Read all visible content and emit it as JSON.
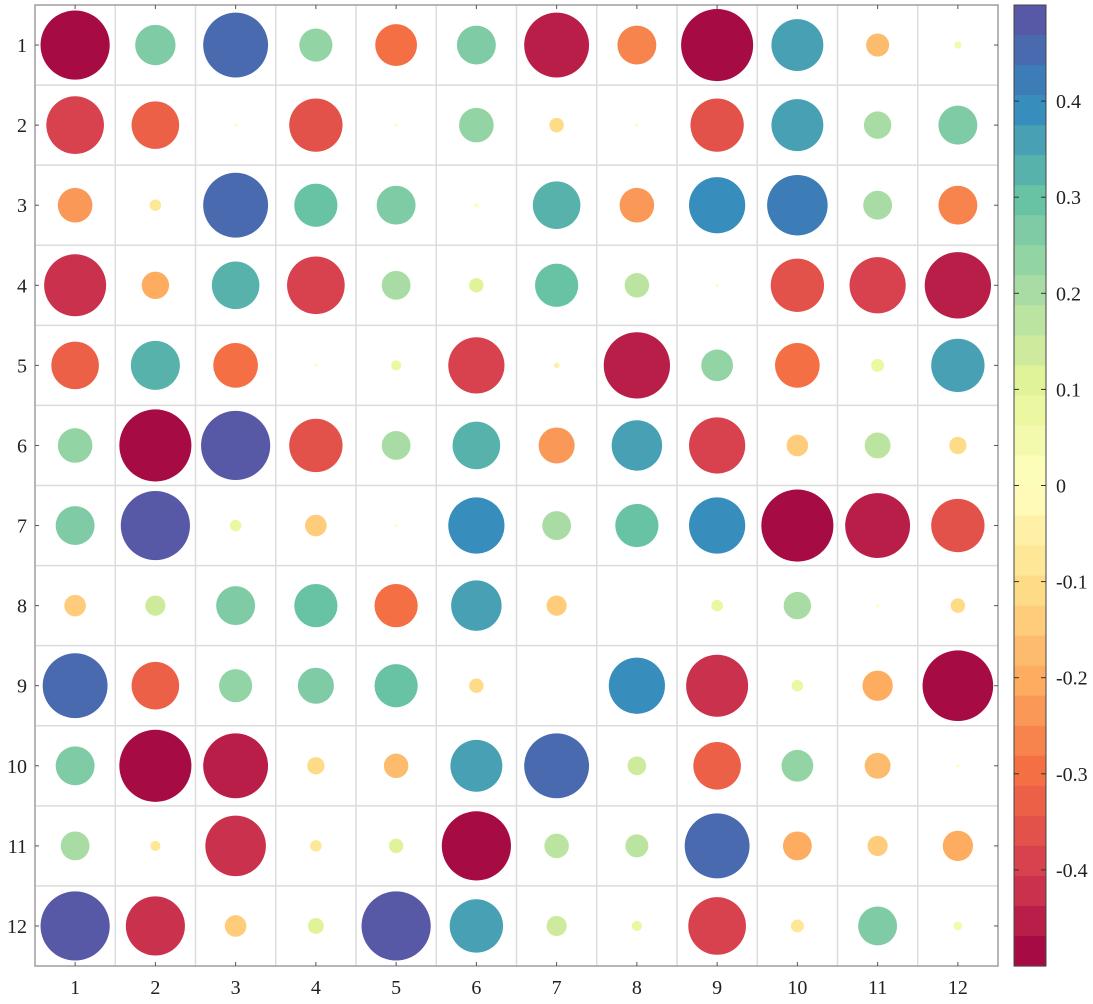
{
  "chart_data": {
    "type": "bubble-correlation-matrix",
    "title": "",
    "x_ticks": [
      "1",
      "2",
      "3",
      "4",
      "5",
      "6",
      "7",
      "8",
      "9",
      "10",
      "11",
      "12"
    ],
    "y_ticks": [
      "1",
      "2",
      "3",
      "4",
      "5",
      "6",
      "7",
      "8",
      "9",
      "10",
      "11",
      "12"
    ],
    "values": [
      [
        -0.48,
        0.28,
        0.45,
        0.23,
        -0.29,
        0.27,
        -0.45,
        -0.27,
        -0.5,
        0.36,
        -0.16,
        0.05
      ],
      [
        -0.4,
        -0.33,
        0.02,
        -0.37,
        0.02,
        0.24,
        -0.1,
        0.02,
        -0.37,
        0.36,
        0.19,
        0.27
      ],
      [
        -0.24,
        -0.08,
        0.45,
        0.3,
        0.27,
        0.03,
        0.33,
        -0.24,
        0.39,
        0.42,
        0.2,
        -0.27
      ],
      [
        -0.43,
        -0.19,
        0.33,
        -0.4,
        0.2,
        0.1,
        0.3,
        0.17,
        0.02,
        -0.37,
        -0.39,
        -0.46
      ],
      [
        -0.33,
        0.34,
        -0.31,
        0.02,
        0.07,
        -0.39,
        -0.04,
        -0.46,
        0.22,
        -0.31,
        0.09,
        0.37
      ],
      [
        0.24,
        -0.5,
        0.48,
        -0.37,
        0.2,
        0.33,
        -0.25,
        0.35,
        -0.39,
        -0.15,
        0.18,
        -0.12
      ],
      [
        0.27,
        0.48,
        0.08,
        -0.15,
        0.02,
        0.39,
        0.2,
        0.3,
        0.39,
        -0.5,
        -0.45,
        -0.37
      ],
      [
        -0.15,
        0.14,
        0.27,
        0.3,
        -0.3,
        0.35,
        -0.14,
        0.0,
        0.08,
        0.19,
        0.02,
        -0.1
      ],
      [
        0.45,
        -0.33,
        0.23,
        0.25,
        0.3,
        -0.1,
        0.0,
        0.39,
        -0.43,
        0.08,
        -0.21,
        -0.49
      ],
      [
        0.27,
        -0.5,
        -0.45,
        -0.12,
        -0.17,
        0.36,
        0.45,
        0.13,
        -0.33,
        0.22,
        -0.18,
        0.02
      ],
      [
        0.2,
        -0.07,
        -0.42,
        -0.08,
        0.1,
        -0.48,
        0.17,
        0.16,
        0.45,
        -0.2,
        -0.14,
        -0.21
      ],
      [
        0.48,
        -0.41,
        -0.15,
        0.11,
        0.48,
        0.37,
        0.14,
        0.07,
        -0.4,
        -0.09,
        0.27,
        0.06
      ]
    ],
    "colorbar": {
      "range": [
        -0.5,
        0.5
      ],
      "ticks": [
        -0.4,
        -0.3,
        -0.2,
        -0.1,
        0,
        0.1,
        0.2,
        0.3,
        0.4
      ],
      "tick_labels": [
        "-0.4",
        "-0.3",
        "-0.2",
        "-0.1",
        "0",
        "0.1",
        "0.2",
        "0.3",
        "0.4"
      ],
      "colormap": "Spectral",
      "levels": 32
    },
    "grid": true,
    "legend": "colorbar right"
  }
}
